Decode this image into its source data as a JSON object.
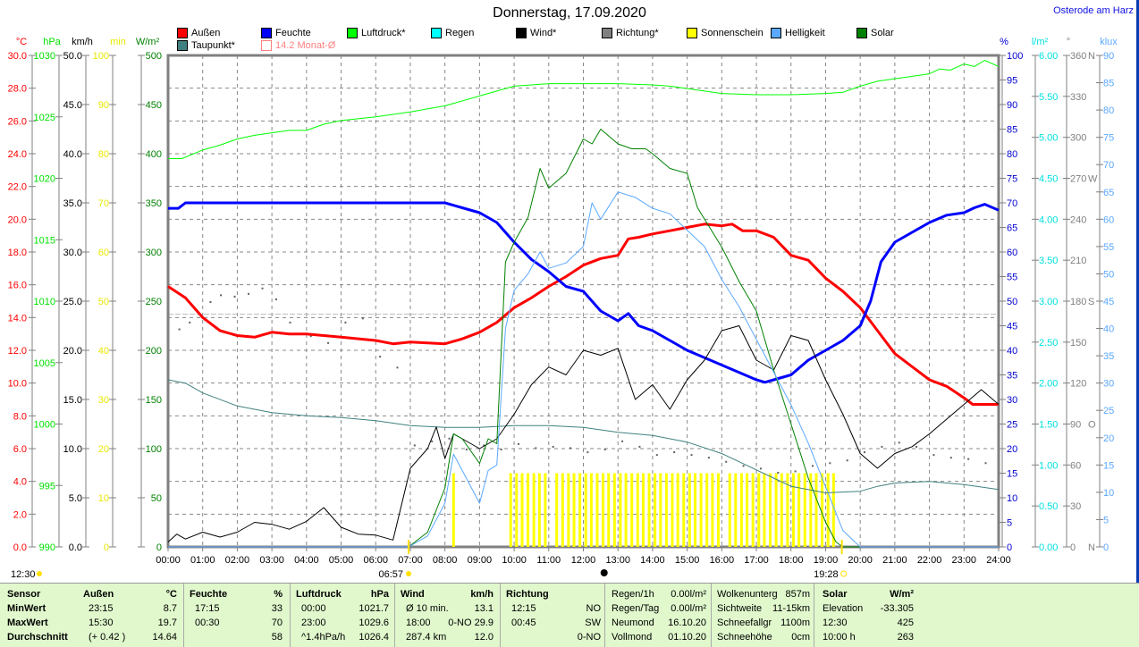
{
  "header": {
    "title": "Donnerstag, 17.09.2020",
    "station": "Osterode am Harz"
  },
  "legend": [
    {
      "label": "Außen",
      "color": "#ff0000"
    },
    {
      "label": "Feuchte",
      "color": "#0000ff"
    },
    {
      "label": "Luftdruck*",
      "color": "#00ff00"
    },
    {
      "label": "Regen",
      "color": "#00ffff"
    },
    {
      "label": "Wind*",
      "color": "#000000"
    },
    {
      "label": "Richtung*",
      "color": "#808080"
    },
    {
      "label": "Sonnenschein",
      "color": "#ffff00"
    },
    {
      "label": "Helligkeit",
      "color": "#5aa8ff"
    },
    {
      "label": "Solar",
      "color": "#008000"
    },
    {
      "label": "Taupunkt*",
      "color": "#408080"
    },
    {
      "label": "14.2 Monat-Ø",
      "color": "#ff8080"
    }
  ],
  "axis_units": {
    "temp": "°C",
    "pressure": "hPa",
    "wind": "km/h",
    "sun": "min",
    "solar": "W/m²",
    "humidity": "%",
    "rain": "l/m²",
    "direction": "°",
    "lux": "klux"
  },
  "sun_events": {
    "left_time": "12:30",
    "sunrise": "06:57",
    "sunset": "19:28"
  },
  "chart_data": {
    "type": "line",
    "title": "Donnerstag, 17.09.2020",
    "x_range": [
      0,
      24
    ],
    "x_ticks": [
      "00:00",
      "01:00",
      "02:00",
      "03:00",
      "04:00",
      "05:00",
      "06:00",
      "07:00",
      "08:00",
      "09:00",
      "10:00",
      "11:00",
      "12:00",
      "13:00",
      "14:00",
      "15:00",
      "16:00",
      "17:00",
      "18:00",
      "19:00",
      "20:00",
      "21:00",
      "22:00",
      "23:00",
      "24:00"
    ],
    "axes": {
      "temp": {
        "range": [
          0,
          30
        ],
        "ticks": [
          "0.0",
          "2.0",
          "4.0",
          "6.0",
          "8.0",
          "10.0",
          "12.0",
          "14.0",
          "16.0",
          "18.0",
          "20.0",
          "22.0",
          "24.0",
          "26.0",
          "28.0",
          "30.0"
        ],
        "color": "#ff0000"
      },
      "pressure": {
        "range": [
          990,
          1030
        ],
        "ticks": [
          "990",
          "995",
          "1000",
          "1005",
          "1010",
          "1015",
          "1020",
          "1025",
          "1030"
        ],
        "color": "#00e000"
      },
      "wind": {
        "range": [
          0,
          50
        ],
        "ticks": [
          "0.0",
          "5.0",
          "10.0",
          "15.0",
          "20.0",
          "25.0",
          "30.0",
          "35.0",
          "40.0",
          "45.0",
          "50.0"
        ],
        "color": "#000000"
      },
      "sun": {
        "range": [
          0,
          100
        ],
        "ticks": [
          "0",
          "10",
          "20",
          "30",
          "40",
          "50",
          "60",
          "70",
          "80",
          "90",
          "100"
        ],
        "color": "#e8e800"
      },
      "solar": {
        "range": [
          0,
          500
        ],
        "ticks": [
          "0",
          "50",
          "100",
          "150",
          "200",
          "250",
          "300",
          "350",
          "400",
          "450",
          "500"
        ],
        "color": "#008000"
      },
      "humidity": {
        "range": [
          0,
          100
        ],
        "ticks": [
          "0",
          "5",
          "10",
          "15",
          "20",
          "25",
          "30",
          "35",
          "40",
          "45",
          "50",
          "55",
          "60",
          "65",
          "70",
          "75",
          "80",
          "85",
          "90",
          "95",
          "100"
        ],
        "color": "#0000d0"
      },
      "rain": {
        "range": [
          0,
          6
        ],
        "ticks": [
          "0.00",
          "0.50",
          "1.00",
          "1.50",
          "2.00",
          "2.50",
          "3.00",
          "3.50",
          "4.00",
          "4.50",
          "5.00",
          "5.50",
          "6.00"
        ],
        "color": "#00e0e0"
      },
      "direction": {
        "range": [
          0,
          360
        ],
        "ticks": [
          "0",
          "30",
          "60",
          "90",
          "120",
          "150",
          "180",
          "210",
          "240",
          "270",
          "300",
          "330",
          "360"
        ],
        "labels": {
          "0": "N",
          "90": "O",
          "180": "S",
          "270": "W",
          "360": "N"
        },
        "color": "#808080"
      },
      "lux": {
        "range": [
          0,
          90
        ],
        "ticks": [
          "0",
          "5",
          "10",
          "15",
          "20",
          "25",
          "30",
          "35",
          "40",
          "45",
          "50",
          "55",
          "60",
          "65",
          "70",
          "75",
          "80",
          "85",
          "90"
        ],
        "color": "#5aa8ff"
      }
    },
    "monthly_mean_temp": 14.2,
    "series": [
      {
        "name": "Außen",
        "axis": "temp",
        "color": "#ff0000",
        "width": 3,
        "x": [
          0,
          0.5,
          1,
          1.5,
          2,
          2.5,
          3,
          3.5,
          4,
          5,
          6,
          6.5,
          7,
          8,
          8.5,
          9,
          9.5,
          10,
          10.5,
          11,
          11.5,
          12,
          12.5,
          13,
          13.3,
          13.6,
          14,
          14.5,
          15,
          15.5,
          16,
          16.3,
          16.6,
          17,
          17.5,
          18,
          18.5,
          19,
          19.5,
          20,
          20.5,
          21,
          21.5,
          22,
          22.5,
          23,
          23.25,
          24
        ],
        "y": [
          15.9,
          15.2,
          14.0,
          13.2,
          12.9,
          12.8,
          13.1,
          13.0,
          13.0,
          12.8,
          12.6,
          12.4,
          12.5,
          12.4,
          12.7,
          13.1,
          13.7,
          14.6,
          15.2,
          15.9,
          16.5,
          17.2,
          17.6,
          17.8,
          18.8,
          18.9,
          19.1,
          19.3,
          19.5,
          19.7,
          19.6,
          19.7,
          19.3,
          19.3,
          18.9,
          17.8,
          17.5,
          16.4,
          15.6,
          14.6,
          13.2,
          11.8,
          11.0,
          10.2,
          9.8,
          9.1,
          8.7,
          8.7
        ]
      },
      {
        "name": "Feuchte",
        "axis": "humidity",
        "color": "#0000ff",
        "width": 3,
        "x": [
          0,
          0.3,
          0.5,
          8,
          8.5,
          9,
          9.5,
          10,
          10.5,
          11,
          11.5,
          12,
          12.5,
          13,
          13.3,
          13.6,
          14,
          14.5,
          15,
          15.5,
          16,
          16.5,
          17,
          17.25,
          17.5,
          18,
          18.5,
          19,
          19.5,
          20,
          20.3,
          20.6,
          21,
          21.5,
          22,
          22.5,
          23,
          23.3,
          23.6,
          24
        ],
        "y": [
          68.9,
          68.9,
          70,
          70,
          69,
          68,
          66,
          62,
          58.5,
          56,
          53,
          52,
          48,
          46,
          47.5,
          45,
          44,
          42,
          40,
          38.5,
          37,
          35.5,
          34,
          33.5,
          34,
          35,
          38,
          40,
          42,
          45,
          50,
          58,
          62,
          64,
          66,
          67.5,
          68,
          69,
          69.7,
          68.5
        ]
      },
      {
        "name": "Luftdruck",
        "axis": "pressure",
        "color": "#00ff00",
        "width": 1,
        "x": [
          0,
          0.4,
          1,
          1.5,
          2,
          2.5,
          3,
          3.5,
          4,
          4.5,
          5,
          6,
          7,
          8,
          9,
          9.5,
          10,
          11,
          12,
          13,
          14,
          14.5,
          15,
          16,
          17,
          18,
          19,
          19.5,
          20,
          20.5,
          21,
          21.5,
          22,
          22.3,
          22.6,
          23,
          23.3,
          23.6,
          24
        ],
        "y": [
          1021.6,
          1021.6,
          1022.3,
          1022.7,
          1023.2,
          1023.5,
          1023.7,
          1023.9,
          1023.9,
          1024.4,
          1024.7,
          1025.0,
          1025.4,
          1025.9,
          1026.7,
          1027.1,
          1027.5,
          1027.7,
          1027.7,
          1027.7,
          1027.6,
          1027.5,
          1027.3,
          1026.9,
          1026.8,
          1026.8,
          1026.9,
          1027.0,
          1027.5,
          1027.9,
          1028.1,
          1028.3,
          1028.5,
          1028.9,
          1028.8,
          1029.3,
          1029.1,
          1029.6,
          1029.1
        ]
      },
      {
        "name": "Taupunkt",
        "axis": "temp",
        "color": "#408080",
        "width": 1,
        "x": [
          0,
          0.5,
          1,
          2,
          3,
          4,
          5,
          6,
          7,
          8,
          9,
          10,
          11,
          12,
          13,
          14,
          15,
          16,
          17,
          17.5,
          18,
          19,
          20,
          20.5,
          21,
          22,
          23,
          24
        ],
        "y": [
          10.2,
          10.0,
          9.4,
          8.6,
          8.2,
          8.0,
          7.9,
          7.7,
          7.4,
          7.3,
          7.3,
          7.4,
          7.4,
          7.3,
          7.0,
          6.8,
          6.4,
          5.7,
          4.7,
          4.2,
          3.7,
          3.3,
          3.4,
          3.7,
          3.9,
          4.0,
          3.8,
          3.5
        ]
      },
      {
        "name": "Wind",
        "axis": "wind",
        "color": "#000000",
        "width": 1,
        "x": [
          0,
          0.25,
          0.5,
          1,
          1.5,
          2,
          2.5,
          3,
          3.5,
          4,
          4.5,
          5,
          5.5,
          6,
          6.5,
          7,
          7.5,
          7.75,
          8,
          8.25,
          8.5,
          9,
          9.5,
          10,
          10.5,
          11,
          11.5,
          12,
          12.5,
          13,
          13.5,
          14,
          14.5,
          15,
          15.5,
          16,
          16.5,
          17,
          17.5,
          18,
          18.5,
          19,
          19.5,
          20,
          20.5,
          21,
          21.5,
          22,
          22.5,
          23,
          23.5,
          24
        ],
        "y": [
          0.5,
          1.3,
          0.8,
          1.5,
          1.0,
          1.5,
          2.5,
          2.3,
          1.8,
          2.6,
          4.0,
          2.0,
          1.3,
          1.2,
          0.7,
          8.0,
          10.0,
          12.2,
          9.0,
          11.5,
          11.0,
          10.0,
          11.0,
          13.5,
          16.5,
          18.3,
          17.5,
          20.0,
          19.5,
          20.2,
          15.0,
          16.5,
          14.0,
          17.0,
          19.0,
          22.0,
          22.5,
          19.0,
          18.0,
          21.5,
          21.0,
          17.0,
          13.5,
          9.5,
          8.0,
          9.5,
          10.2,
          11.5,
          13.0,
          14.5,
          16.0,
          14.5
        ]
      },
      {
        "name": "Solar",
        "axis": "solar",
        "color": "#008000",
        "width": 1,
        "x": [
          0,
          6.95,
          7.5,
          8,
          8.25,
          8.5,
          9,
          9.25,
          9.5,
          9.75,
          10,
          10.4,
          10.75,
          11,
          11.5,
          12,
          12.25,
          12.5,
          13,
          13.4,
          13.8,
          14,
          14.5,
          15,
          15.3,
          16,
          16.5,
          17,
          17.5,
          18,
          18.5,
          19,
          19.3,
          19.5,
          24
        ],
        "y": [
          0,
          0,
          15,
          60,
          115,
          110,
          85,
          110,
          105,
          290,
          310,
          335,
          385,
          365,
          380,
          415,
          410,
          425,
          410,
          405,
          405,
          400,
          385,
          380,
          345,
          305,
          270,
          240,
          180,
          125,
          70,
          25,
          5,
          0,
          0
        ]
      },
      {
        "name": "Helligkeit",
        "axis": "lux",
        "color": "#5aa8ff",
        "width": 1,
        "x": [
          0,
          6.95,
          7.5,
          8,
          8.25,
          8.5,
          9,
          9.25,
          9.5,
          9.75,
          10,
          10.4,
          10.75,
          11,
          11.5,
          12,
          12.25,
          12.5,
          13,
          13.5,
          14,
          14.5,
          15,
          15.5,
          16,
          16.5,
          17,
          17.5,
          18,
          18.5,
          19,
          19.5,
          20,
          24
        ],
        "y": [
          0,
          0,
          2,
          8,
          17,
          14,
          8,
          14,
          15,
          40,
          47,
          50,
          54,
          51,
          52,
          55,
          63,
          60,
          65,
          64,
          62,
          61,
          58,
          55,
          49,
          44,
          38,
          32,
          26,
          19,
          11,
          3,
          0,
          0
        ]
      }
    ],
    "sunshine_bars": {
      "axis": "sun",
      "value": 15,
      "x": [
        8.25,
        9.9,
        10.07,
        10.23,
        10.4,
        10.57,
        10.73,
        10.9,
        11.23,
        11.4,
        11.57,
        11.73,
        11.9,
        12.07,
        12.23,
        12.4,
        12.57,
        12.73,
        12.9,
        13.07,
        13.23,
        13.4,
        13.57,
        13.73,
        13.9,
        14.07,
        14.23,
        14.4,
        14.57,
        14.73,
        14.9,
        15.07,
        15.23,
        15.4,
        15.57,
        15.73,
        15.9,
        16.23,
        16.4,
        16.57,
        16.73,
        16.9,
        17.07,
        17.23,
        17.4,
        17.57,
        17.73,
        17.9,
        18.07,
        18.23,
        18.4,
        18.57,
        18.73,
        18.9,
        19.07,
        19.23
      ]
    },
    "direction_points": {
      "axis": "direction",
      "x": [
        0.3,
        0.6,
        1.2,
        1.5,
        1.9,
        2.3,
        2.7,
        3.1,
        3.5,
        4.1,
        4.6,
        5.1,
        5.6,
        6.1,
        6.6,
        7.1,
        7.6,
        8.1,
        8.6,
        9.1,
        9.6,
        10.1,
        10.6,
        11.1,
        11.6,
        12.1,
        12.6,
        13.1,
        13.6,
        14.1,
        14.6,
        15.1,
        15.6,
        16.1,
        16.6,
        17.1,
        17.6,
        18.1,
        18.6,
        19.1,
        19.6,
        20.1,
        20.6,
        21.1,
        21.6,
        22.1,
        22.6,
        23.1,
        23.6
      ],
      "y": [
        160,
        165,
        180,
        185,
        184,
        186,
        190,
        182,
        165,
        155,
        150,
        165,
        168,
        140,
        132,
        75,
        78,
        80,
        72,
        75,
        72,
        76,
        73,
        74,
        73,
        70,
        72,
        78,
        74,
        68,
        70,
        68,
        66,
        63,
        60,
        58,
        55,
        56,
        60,
        62,
        64,
        70,
        74,
        77,
        74,
        68,
        66,
        65,
        62
      ]
    }
  },
  "footer": {
    "headers": {
      "sensor": "Sensor",
      "aussen": "Außen",
      "aussen_unit": "°C",
      "feuchte": "Feuchte",
      "feuchte_unit": "%",
      "druck": "Luftdruck",
      "druck_unit": "hPa",
      "wind": "Wind",
      "wind_unit": "km/h",
      "richtung": "Richtung",
      "solar": "Solar",
      "solar_unit": "W/m²"
    },
    "row_labels": [
      "MinWert",
      "MaxWert",
      "Durchschnitt"
    ],
    "aussen": [
      [
        "23:15",
        "8.7"
      ],
      [
        "15:30",
        "19.7"
      ],
      [
        "(+ 0.42 )",
        "14.64"
      ]
    ],
    "feuchte": [
      [
        "17:15",
        "33"
      ],
      [
        "00:30",
        "70"
      ],
      [
        "",
        "58"
      ]
    ],
    "druck": [
      [
        "00:00",
        "1021.7"
      ],
      [
        "23:00",
        "1029.6"
      ],
      [
        "^1.4hPa/h",
        "1026.4"
      ]
    ],
    "wind": [
      [
        "Ø 10 min.",
        "13.1"
      ],
      [
        "18:00",
        "0-NO 29.9"
      ],
      [
        "287.4 km",
        "12.0"
      ]
    ],
    "richtung": [
      [
        "12:15",
        "NO"
      ],
      [
        "00:45",
        "SW"
      ],
      [
        "",
        "0-NO"
      ]
    ],
    "rain": [
      [
        "Regen/1h",
        "0.00l/m²"
      ],
      [
        "Regen/Tag",
        "0.00l/m²"
      ],
      [
        "Neumond",
        "16.10.20"
      ],
      [
        "Vollmond",
        "01.10.20"
      ]
    ],
    "misc": [
      [
        "Wolkenunterg",
        "857m"
      ],
      [
        "Sichtweite",
        "11-15km"
      ],
      [
        "Schneefallgr",
        "1100m"
      ],
      [
        "Schneehöhe",
        "0cm"
      ]
    ],
    "solar": [
      [
        "Elevation",
        "-33.305"
      ],
      [
        "12:30",
        "425"
      ],
      [
        "10:00 h",
        "263"
      ]
    ]
  }
}
